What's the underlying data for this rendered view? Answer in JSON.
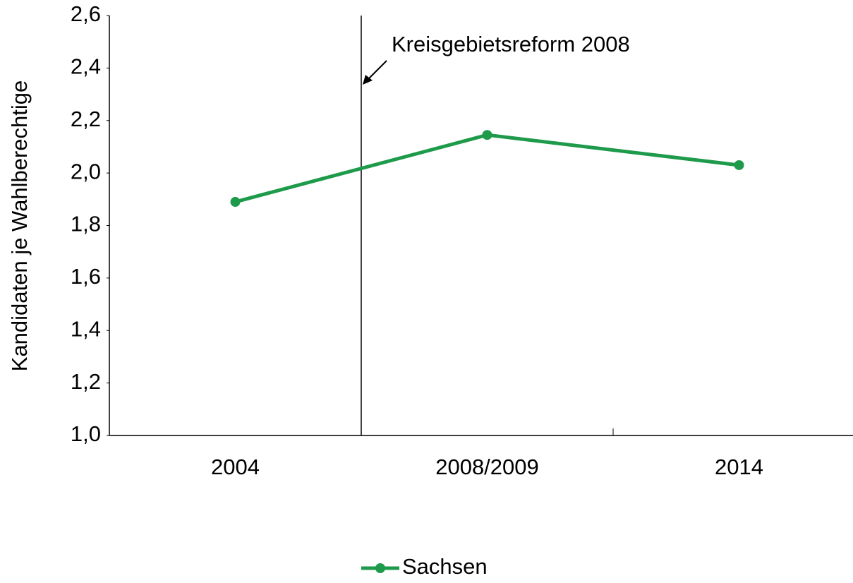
{
  "chart_data": {
    "type": "line",
    "y_label": "Kandidaten je Wahlberechtige",
    "annotation": "Kreisgebietsreform 2008",
    "categories": [
      "2004",
      "2008/2009",
      "2014"
    ],
    "series": [
      {
        "name": "Sachsen",
        "color": "#1e9a4b",
        "values": [
          1.89,
          2.145,
          2.03
        ]
      }
    ],
    "ylim": [
      1.0,
      2.6
    ],
    "yticks": [
      {
        "value": 1.0,
        "label": "1,0"
      },
      {
        "value": 1.2,
        "label": "1,2"
      },
      {
        "value": 1.4,
        "label": "1,4"
      },
      {
        "value": 1.6,
        "label": "1,6"
      },
      {
        "value": 1.8,
        "label": "1,8"
      },
      {
        "value": 2.0,
        "label": "2,0"
      },
      {
        "value": 2.2,
        "label": "2,2"
      },
      {
        "value": 2.4,
        "label": "2,4"
      },
      {
        "value": 2.6,
        "label": "2,6"
      }
    ],
    "legend": "bottom"
  }
}
